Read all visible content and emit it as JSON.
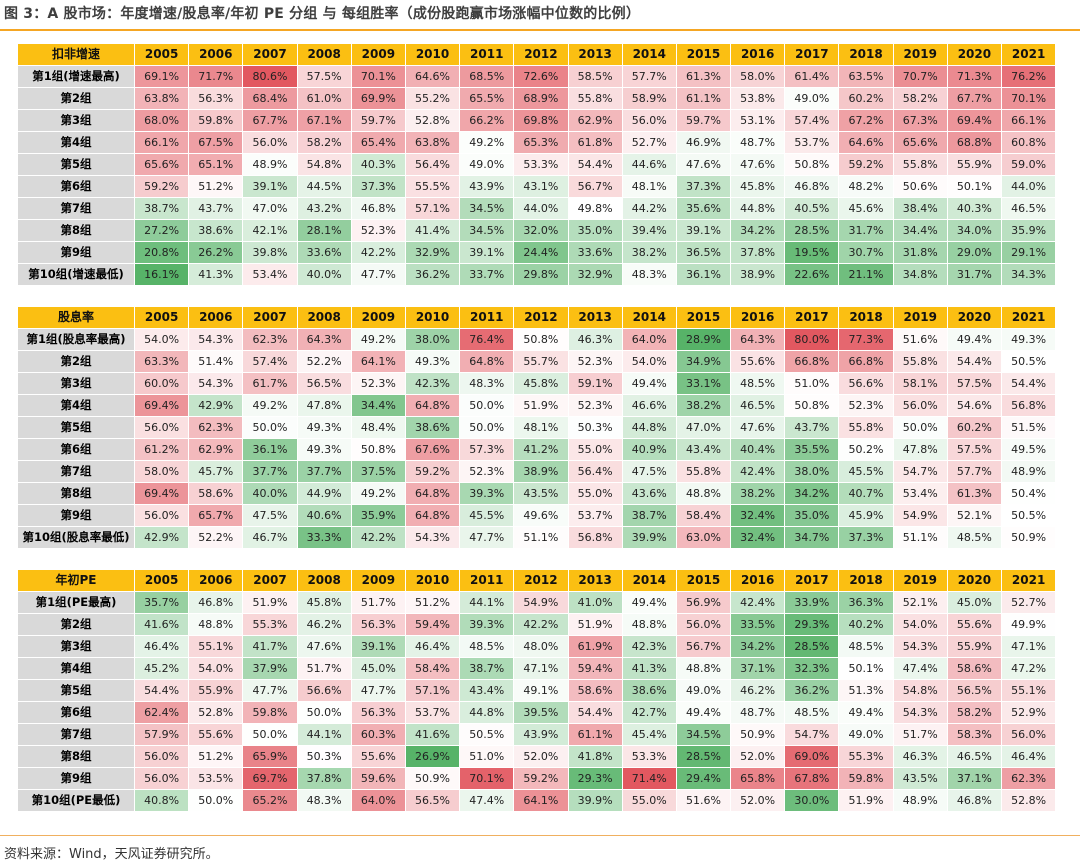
{
  "title": "图 3：A 股市场：年度增速/股息率/年初 PE 分组 与 每组胜率（成份股跑赢市场涨幅中位数的比例）",
  "source": "资料来源：Wind，天风证券研究所。",
  "colors": {
    "header": "#fbbf12",
    "row_label": "#d9d9d9",
    "high": "#e25860",
    "mid": "#ffffff",
    "low": "#57b368"
  },
  "chart_data": [
    {
      "type": "heatmap",
      "corner_label": "扣非增速",
      "x": [
        "2005",
        "2006",
        "2007",
        "2008",
        "2009",
        "2010",
        "2011",
        "2012",
        "2013",
        "2014",
        "2015",
        "2016",
        "2017",
        "2018",
        "2019",
        "2020",
        "2021"
      ],
      "rows": [
        {
          "label": "第1组(增速最高)",
          "values": [
            "69.1%",
            "71.7%",
            "80.6%",
            "57.5%",
            "70.1%",
            "64.6%",
            "68.5%",
            "72.6%",
            "58.5%",
            "57.7%",
            "61.3%",
            "58.0%",
            "61.4%",
            "63.5%",
            "70.7%",
            "71.3%",
            "76.2%"
          ]
        },
        {
          "label": "第2组",
          "values": [
            "63.8%",
            "56.3%",
            "68.4%",
            "61.0%",
            "69.9%",
            "55.2%",
            "65.5%",
            "68.9%",
            "55.8%",
            "58.9%",
            "61.1%",
            "53.8%",
            "49.0%",
            "60.2%",
            "58.2%",
            "67.7%",
            "70.1%"
          ]
        },
        {
          "label": "第3组",
          "values": [
            "68.0%",
            "59.8%",
            "67.7%",
            "67.1%",
            "59.7%",
            "52.8%",
            "66.2%",
            "69.8%",
            "62.9%",
            "56.0%",
            "59.7%",
            "53.1%",
            "57.4%",
            "67.2%",
            "67.3%",
            "69.4%",
            "66.1%"
          ]
        },
        {
          "label": "第4组",
          "values": [
            "66.1%",
            "67.5%",
            "56.0%",
            "58.2%",
            "65.4%",
            "63.8%",
            "49.2%",
            "65.3%",
            "61.8%",
            "52.7%",
            "46.9%",
            "48.7%",
            "53.7%",
            "64.6%",
            "65.6%",
            "68.8%",
            "60.8%"
          ]
        },
        {
          "label": "第5组",
          "values": [
            "65.6%",
            "65.1%",
            "48.9%",
            "54.8%",
            "40.3%",
            "56.4%",
            "49.0%",
            "53.3%",
            "54.4%",
            "44.6%",
            "47.6%",
            "47.6%",
            "50.8%",
            "59.2%",
            "55.8%",
            "55.9%",
            "59.0%"
          ]
        },
        {
          "label": "第6组",
          "values": [
            "59.2%",
            "51.2%",
            "39.1%",
            "44.5%",
            "37.3%",
            "55.5%",
            "43.9%",
            "43.1%",
            "56.7%",
            "48.1%",
            "37.3%",
            "45.8%",
            "46.8%",
            "48.2%",
            "50.6%",
            "50.1%",
            "44.0%"
          ]
        },
        {
          "label": "第7组",
          "values": [
            "38.7%",
            "43.7%",
            "47.0%",
            "43.2%",
            "46.8%",
            "57.1%",
            "34.5%",
            "44.0%",
            "49.8%",
            "44.2%",
            "35.6%",
            "44.8%",
            "40.5%",
            "45.6%",
            "38.4%",
            "40.3%",
            "46.5%"
          ]
        },
        {
          "label": "第8组",
          "values": [
            "27.2%",
            "38.6%",
            "42.1%",
            "28.1%",
            "52.3%",
            "41.4%",
            "34.5%",
            "32.0%",
            "35.0%",
            "39.4%",
            "39.1%",
            "34.2%",
            "28.5%",
            "31.7%",
            "34.4%",
            "34.0%",
            "35.9%"
          ]
        },
        {
          "label": "第9组",
          "values": [
            "20.8%",
            "26.2%",
            "39.8%",
            "33.6%",
            "42.2%",
            "32.9%",
            "39.1%",
            "24.4%",
            "33.6%",
            "38.2%",
            "36.5%",
            "37.8%",
            "19.5%",
            "30.7%",
            "31.8%",
            "29.0%",
            "29.1%"
          ]
        },
        {
          "label": "第10组(增速最低)",
          "values": [
            "16.1%",
            "41.3%",
            "53.4%",
            "40.0%",
            "47.7%",
            "36.2%",
            "33.7%",
            "29.8%",
            "32.9%",
            "48.3%",
            "36.1%",
            "38.9%",
            "22.6%",
            "21.1%",
            "34.8%",
            "31.7%",
            "34.3%"
          ]
        }
      ]
    },
    {
      "type": "heatmap",
      "corner_label": "股息率",
      "x": [
        "2005",
        "2006",
        "2007",
        "2008",
        "2009",
        "2010",
        "2011",
        "2012",
        "2013",
        "2014",
        "2015",
        "2016",
        "2017",
        "2018",
        "2019",
        "2020",
        "2021"
      ],
      "rows": [
        {
          "label": "第1组(股息率最高)",
          "values": [
            "54.0%",
            "54.3%",
            "62.3%",
            "64.3%",
            "49.2%",
            "38.0%",
            "76.4%",
            "50.8%",
            "46.3%",
            "64.0%",
            "28.9%",
            "64.3%",
            "80.0%",
            "77.3%",
            "51.6%",
            "49.4%",
            "49.3%"
          ]
        },
        {
          "label": "第2组",
          "values": [
            "63.3%",
            "51.4%",
            "57.4%",
            "52.2%",
            "64.1%",
            "49.3%",
            "64.8%",
            "55.7%",
            "52.3%",
            "54.0%",
            "34.9%",
            "55.6%",
            "66.8%",
            "66.8%",
            "55.8%",
            "54.4%",
            "50.5%"
          ]
        },
        {
          "label": "第3组",
          "values": [
            "60.0%",
            "54.3%",
            "61.7%",
            "56.5%",
            "52.3%",
            "42.3%",
            "48.3%",
            "45.8%",
            "59.1%",
            "49.4%",
            "33.1%",
            "48.5%",
            "51.0%",
            "56.6%",
            "58.1%",
            "57.5%",
            "54.4%"
          ]
        },
        {
          "label": "第4组",
          "values": [
            "69.4%",
            "42.9%",
            "49.2%",
            "47.8%",
            "34.4%",
            "64.8%",
            "50.0%",
            "51.9%",
            "52.3%",
            "46.6%",
            "38.2%",
            "46.5%",
            "50.8%",
            "52.3%",
            "56.0%",
            "54.6%",
            "56.8%"
          ]
        },
        {
          "label": "第5组",
          "values": [
            "56.0%",
            "62.3%",
            "50.0%",
            "49.3%",
            "48.4%",
            "38.6%",
            "50.0%",
            "48.1%",
            "50.3%",
            "44.8%",
            "47.0%",
            "47.6%",
            "43.7%",
            "55.8%",
            "50.0%",
            "60.2%",
            "51.5%"
          ]
        },
        {
          "label": "第6组",
          "values": [
            "61.2%",
            "62.9%",
            "36.1%",
            "49.3%",
            "50.8%",
            "67.6%",
            "57.3%",
            "41.2%",
            "55.0%",
            "40.9%",
            "43.4%",
            "40.4%",
            "35.5%",
            "50.2%",
            "47.8%",
            "57.5%",
            "49.5%"
          ]
        },
        {
          "label": "第7组",
          "values": [
            "58.0%",
            "45.7%",
            "37.7%",
            "37.7%",
            "37.5%",
            "59.2%",
            "52.3%",
            "38.9%",
            "56.4%",
            "47.5%",
            "55.8%",
            "42.4%",
            "38.0%",
            "45.5%",
            "54.7%",
            "57.7%",
            "48.9%"
          ]
        },
        {
          "label": "第8组",
          "values": [
            "69.4%",
            "58.6%",
            "40.0%",
            "44.9%",
            "49.2%",
            "64.8%",
            "39.3%",
            "43.5%",
            "55.0%",
            "43.6%",
            "48.8%",
            "38.2%",
            "34.2%",
            "40.7%",
            "53.4%",
            "61.3%",
            "50.4%"
          ]
        },
        {
          "label": "第9组",
          "values": [
            "56.0%",
            "65.7%",
            "47.5%",
            "40.6%",
            "35.9%",
            "64.8%",
            "45.5%",
            "49.6%",
            "53.7%",
            "38.7%",
            "58.4%",
            "32.4%",
            "35.0%",
            "45.9%",
            "54.9%",
            "52.1%",
            "50.5%"
          ]
        },
        {
          "label": "第10组(股息率最低)",
          "values": [
            "42.9%",
            "52.2%",
            "46.7%",
            "33.3%",
            "42.2%",
            "54.3%",
            "47.7%",
            "51.1%",
            "56.8%",
            "39.9%",
            "63.0%",
            "32.4%",
            "34.7%",
            "37.3%",
            "51.1%",
            "48.5%",
            "50.9%"
          ]
        }
      ]
    },
    {
      "type": "heatmap",
      "corner_label": "年初PE",
      "x": [
        "2005",
        "2006",
        "2007",
        "2008",
        "2009",
        "2010",
        "2011",
        "2012",
        "2013",
        "2014",
        "2015",
        "2016",
        "2017",
        "2018",
        "2019",
        "2020",
        "2021"
      ],
      "rows": [
        {
          "label": "第1组(PE最高)",
          "values": [
            "35.7%",
            "46.8%",
            "51.9%",
            "45.8%",
            "51.7%",
            "51.2%",
            "44.1%",
            "54.9%",
            "41.0%",
            "49.4%",
            "56.9%",
            "42.4%",
            "33.9%",
            "36.3%",
            "52.1%",
            "45.0%",
            "52.7%"
          ]
        },
        {
          "label": "第2组",
          "values": [
            "41.6%",
            "48.8%",
            "55.3%",
            "46.2%",
            "56.3%",
            "59.4%",
            "39.3%",
            "42.2%",
            "51.9%",
            "48.8%",
            "56.0%",
            "33.5%",
            "29.3%",
            "40.2%",
            "54.0%",
            "55.6%",
            "49.9%"
          ]
        },
        {
          "label": "第3组",
          "values": [
            "46.4%",
            "55.1%",
            "41.7%",
            "47.6%",
            "39.1%",
            "46.4%",
            "48.5%",
            "48.0%",
            "61.9%",
            "42.3%",
            "56.7%",
            "34.2%",
            "28.5%",
            "48.5%",
            "54.3%",
            "55.9%",
            "47.1%"
          ]
        },
        {
          "label": "第4组",
          "values": [
            "45.2%",
            "54.0%",
            "37.9%",
            "51.7%",
            "45.0%",
            "58.4%",
            "38.7%",
            "47.1%",
            "59.4%",
            "41.3%",
            "48.8%",
            "37.1%",
            "32.3%",
            "50.1%",
            "47.4%",
            "58.6%",
            "47.2%"
          ]
        },
        {
          "label": "第5组",
          "values": [
            "54.4%",
            "55.9%",
            "47.7%",
            "56.6%",
            "47.7%",
            "57.1%",
            "43.4%",
            "49.1%",
            "58.6%",
            "38.6%",
            "49.0%",
            "46.2%",
            "36.2%",
            "51.3%",
            "54.8%",
            "56.5%",
            "55.1%"
          ]
        },
        {
          "label": "第6组",
          "values": [
            "62.4%",
            "52.8%",
            "59.8%",
            "50.0%",
            "56.3%",
            "53.7%",
            "44.8%",
            "39.5%",
            "54.4%",
            "42.7%",
            "49.4%",
            "48.7%",
            "48.5%",
            "49.4%",
            "54.3%",
            "58.2%",
            "52.9%"
          ]
        },
        {
          "label": "第7组",
          "values": [
            "57.9%",
            "55.6%",
            "50.0%",
            "44.1%",
            "60.3%",
            "41.6%",
            "50.5%",
            "43.9%",
            "61.1%",
            "45.4%",
            "34.5%",
            "50.9%",
            "54.7%",
            "49.0%",
            "51.7%",
            "58.3%",
            "56.0%"
          ]
        },
        {
          "label": "第8组",
          "values": [
            "56.0%",
            "51.2%",
            "65.9%",
            "50.3%",
            "55.6%",
            "26.9%",
            "51.0%",
            "52.0%",
            "41.8%",
            "53.3%",
            "28.5%",
            "52.0%",
            "69.0%",
            "55.3%",
            "46.3%",
            "46.5%",
            "46.4%"
          ]
        },
        {
          "label": "第9组",
          "values": [
            "56.0%",
            "53.5%",
            "69.7%",
            "37.8%",
            "59.6%",
            "50.9%",
            "70.1%",
            "59.2%",
            "29.3%",
            "71.4%",
            "29.4%",
            "65.8%",
            "67.8%",
            "59.8%",
            "43.5%",
            "37.1%",
            "62.3%"
          ]
        },
        {
          "label": "第10组(PE最低)",
          "values": [
            "40.8%",
            "50.0%",
            "65.2%",
            "48.3%",
            "64.0%",
            "56.5%",
            "47.4%",
            "64.1%",
            "39.9%",
            "55.0%",
            "51.6%",
            "52.0%",
            "30.0%",
            "51.9%",
            "48.9%",
            "46.8%",
            "52.8%"
          ]
        }
      ]
    }
  ]
}
